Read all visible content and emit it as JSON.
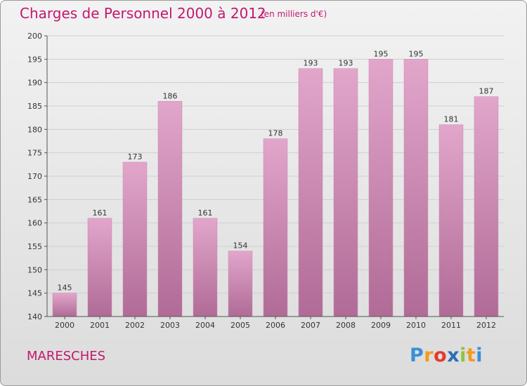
{
  "chart_data": {
    "type": "bar",
    "title": "Charges de Personnel 2000 à 2012",
    "unit": "(en milliers d'€)",
    "categories": [
      "2000",
      "2001",
      "2002",
      "2003",
      "2004",
      "2005",
      "2006",
      "2007",
      "2008",
      "2009",
      "2010",
      "2011",
      "2012"
    ],
    "values": [
      145,
      161,
      173,
      186,
      161,
      154,
      178,
      193,
      193,
      195,
      195,
      181,
      187
    ],
    "ylim": [
      140,
      200
    ],
    "yticks": [
      140,
      145,
      150,
      155,
      160,
      165,
      170,
      175,
      180,
      185,
      190,
      195,
      200
    ],
    "grid": true,
    "bar_color_top": "#e2a6cb",
    "bar_color_bottom": "#b06b96",
    "xlabel": "",
    "ylabel": ""
  },
  "commune": "MARESCHES",
  "logo": {
    "letters": [
      "P",
      "r",
      "o",
      "x",
      "i",
      "t",
      "i"
    ],
    "colors": [
      "#3a8fd6",
      "#f29b1d",
      "#e23b2e",
      "#2d6db3",
      "#8cc63f",
      "#f29b1d",
      "#3a8fd6"
    ]
  },
  "colors": {
    "title": "#c2186e",
    "axis": "#555555",
    "grid": "#cfcfcf"
  }
}
